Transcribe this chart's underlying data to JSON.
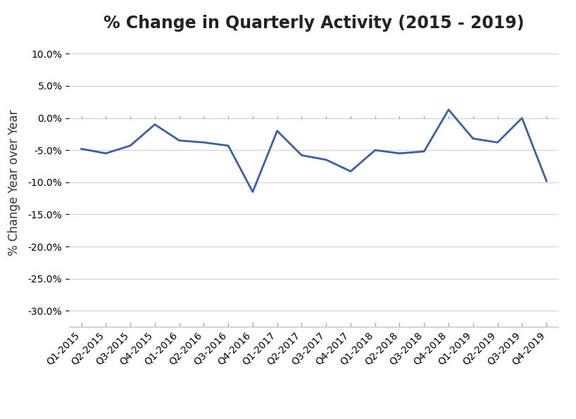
{
  "title": "% Change in Quarterly Activity (2015 - 2019)",
  "ylabel": "% Change Year over Year",
  "categories": [
    "Q1-2015",
    "Q2-2015",
    "Q3-2015",
    "Q4-2015",
    "Q1-2016",
    "Q2-2016",
    "Q3-2016",
    "Q4-2016",
    "Q1-2017",
    "Q2-2017",
    "Q3-2017",
    "Q4-2017",
    "Q1-2018",
    "Q2-2018",
    "Q3-2018",
    "Q4-2018",
    "Q1-2019",
    "Q2-2019",
    "Q3-2019",
    "Q4-2019"
  ],
  "values": [
    -4.8,
    -5.5,
    -4.3,
    -1.0,
    -3.5,
    -3.8,
    -4.3,
    -11.5,
    -2.0,
    -5.8,
    -6.5,
    -8.3,
    -5.0,
    -5.5,
    -5.2,
    1.3,
    -3.2,
    -3.8,
    0.0,
    -9.8
  ],
  "line_color": "#3C5FA0",
  "line_width": 2.0,
  "ylim": [
    -32.5,
    12.5
  ],
  "yticks": [
    10.0,
    5.0,
    0.0,
    -5.0,
    -10.0,
    -15.0,
    -20.0,
    -25.0,
    -30.0
  ],
  "grid_color": "#D0D0D0",
  "background_color": "#FFFFFF",
  "plot_bg_color": "#FFFFFF",
  "title_fontsize": 17,
  "label_fontsize": 12,
  "tick_fontsize": 10
}
